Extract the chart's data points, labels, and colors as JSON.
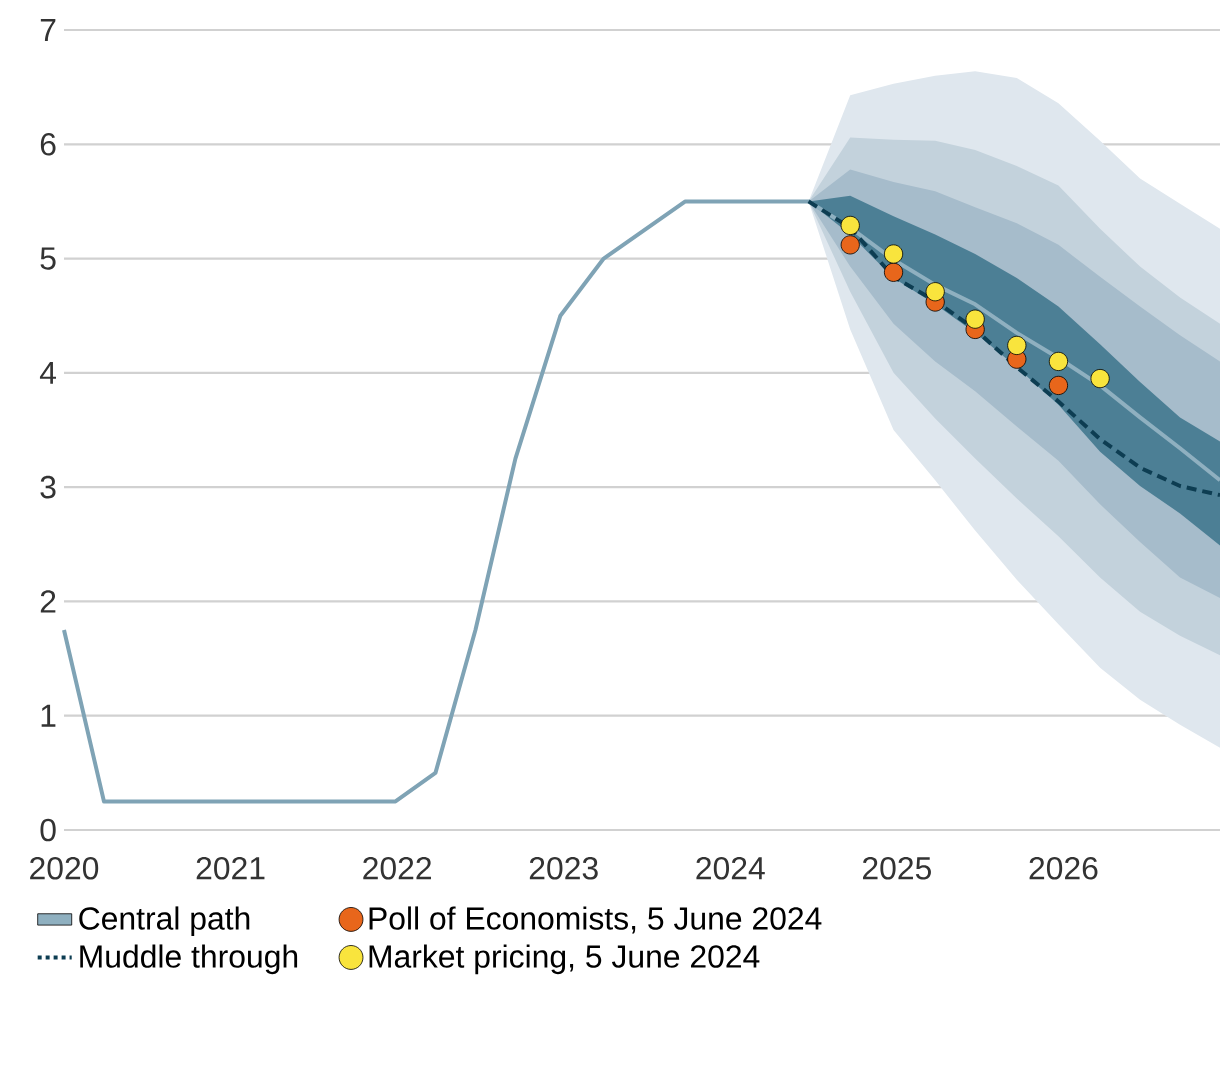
{
  "chart_data": {
    "type": "line",
    "xlim": [
      2020,
      2026.94
    ],
    "ylim": [
      0,
      7
    ],
    "xticks": [
      2020,
      2021,
      2022,
      2023,
      2024,
      2025,
      2026
    ],
    "yticks": [
      0,
      1,
      2,
      3,
      4,
      5,
      6,
      7
    ],
    "grid": "y",
    "legend": "bottom",
    "series": [
      {
        "type": "line",
        "color": "#dfe7ee",
        "x": [
          2024.47,
          2024.72,
          2024.98,
          2025.23,
          2025.47,
          2025.72,
          2025.97,
          2026.22,
          2026.46,
          2026.7,
          2026.94
        ],
        "values": [
          null,
          null,
          null,
          null,
          null,
          null,
          null,
          null,
          null,
          null,
          null
        ],
        "lower": [
          5.5,
          4.38,
          3.5,
          3.06,
          2.62,
          2.19,
          1.8,
          1.42,
          1.14,
          0.92,
          0.72
        ],
        "upper": [
          5.5,
          6.43,
          6.53,
          6.6,
          6.64,
          6.58,
          6.36,
          6.03,
          5.7,
          5.48,
          5.26
        ]
      },
      {
        "type": "line",
        "color": "#c3d2dc",
        "x": [
          2024.47,
          2024.72,
          2024.98,
          2025.23,
          2025.47,
          2025.72,
          2025.97,
          2026.22,
          2026.46,
          2026.7,
          2026.94
        ],
        "values": [
          null,
          null,
          null,
          null,
          null,
          null,
          null,
          null,
          null,
          null,
          null
        ],
        "lower": [
          5.5,
          4.71,
          4.0,
          3.6,
          3.25,
          2.9,
          2.57,
          2.21,
          1.91,
          1.7,
          1.53
        ],
        "upper": [
          5.5,
          6.06,
          6.04,
          6.03,
          5.95,
          5.81,
          5.64,
          5.26,
          4.93,
          4.66,
          4.43
        ]
      },
      {
        "type": "line",
        "color": "#a6bccb",
        "x": [
          2024.47,
          2024.72,
          2024.98,
          2025.23,
          2025.47,
          2025.72,
          2025.97,
          2026.22,
          2026.46,
          2026.7,
          2026.94
        ],
        "values": [
          null,
          null,
          null,
          null,
          null,
          null,
          null,
          null,
          null,
          null,
          null
        ],
        "lower": [
          5.5,
          4.93,
          4.43,
          4.1,
          3.84,
          3.53,
          3.23,
          2.85,
          2.52,
          2.21,
          2.03
        ],
        "upper": [
          5.5,
          5.78,
          5.67,
          5.59,
          5.45,
          5.31,
          5.12,
          4.84,
          4.58,
          4.33,
          4.1
        ]
      },
      {
        "name": "Central path",
        "type": "line",
        "color": "#8fb0c0",
        "x": [
          2024.47,
          2024.72,
          2024.98,
          2025.23,
          2025.47,
          2025.72,
          2025.97,
          2026.22,
          2026.46,
          2026.7,
          2026.94
        ],
        "values": [
          5.5,
          5.27,
          4.99,
          4.77,
          4.6,
          4.35,
          4.13,
          3.89,
          3.61,
          3.34,
          3.06
        ],
        "lower": [
          5.5,
          5.21,
          4.83,
          4.6,
          4.35,
          4.05,
          3.72,
          3.31,
          3.01,
          2.77,
          2.49
        ],
        "upper": [
          5.5,
          5.55,
          5.37,
          5.21,
          5.04,
          4.83,
          4.58,
          4.25,
          3.92,
          3.61,
          3.4
        ]
      },
      {
        "type": "line",
        "color": "#7fa3b5",
        "x": [
          2020.0,
          2020.24,
          2021.99,
          2022.23,
          2022.47,
          2022.71,
          2022.98,
          2023.24,
          2023.73,
          2024.48
        ],
        "values": [
          1.75,
          0.25,
          0.25,
          0.5,
          1.75,
          3.25,
          4.5,
          5.0,
          5.5,
          5.5
        ]
      },
      {
        "name": "Poll of Economists, 5 June 2024",
        "type": "scatter",
        "color": "#e8661b",
        "x": [
          2024.72,
          2024.98,
          2025.23,
          2025.47,
          2025.72,
          2025.97
        ],
        "values": [
          5.12,
          4.88,
          4.62,
          4.38,
          4.12,
          3.89
        ]
      },
      {
        "name": "Muddle through",
        "type": "line",
        "line_style": "dashed",
        "color": "#0d3d52",
        "x": [
          2024.47,
          2024.72,
          2024.98,
          2025.23,
          2025.47,
          2025.72,
          2025.97,
          2026.22,
          2026.46,
          2026.7,
          2026.94
        ],
        "values": [
          5.5,
          5.27,
          4.84,
          4.63,
          4.38,
          4.05,
          3.75,
          3.42,
          3.17,
          3.01,
          2.93
        ]
      },
      {
        "name": "Market pricing, 5 June 2024",
        "type": "scatter",
        "color": "#f9e43d",
        "x": [
          2024.72,
          2024.98,
          2025.23,
          2025.47,
          2025.72,
          2025.97,
          2026.22
        ],
        "values": [
          5.29,
          5.04,
          4.71,
          4.47,
          4.24,
          4.1,
          3.95
        ]
      }
    ]
  }
}
